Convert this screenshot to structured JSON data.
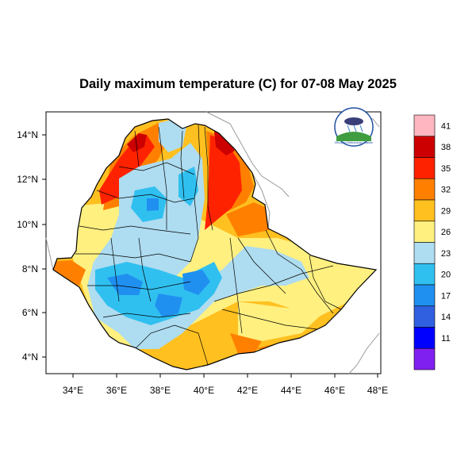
{
  "title": "Daily maximum temperature (C) for 07-08 May 2025",
  "map": {
    "lon_range": [
      33,
      48
    ],
    "lat_range": [
      3.2,
      15
    ],
    "x_ticks": [
      "34°E",
      "36°E",
      "38°E",
      "40°E",
      "42°E",
      "44°E",
      "46°E",
      "48°E"
    ],
    "y_ticks": [
      "14°N",
      "12°N",
      "10°N",
      "8°N",
      "6°N",
      "4°N"
    ],
    "colors": {
      "land_outside": "#ffffff",
      "boundary": "#000000",
      "neighbor_border": "#9a9a9a"
    }
  },
  "colorbar": {
    "labels": [
      "41",
      "38",
      "35",
      "32",
      "29",
      "26",
      "23",
      "20",
      "17",
      "14",
      "11"
    ],
    "colors": [
      "#ffb6c1",
      "#cc0000",
      "#ff2200",
      "#ff8000",
      "#ffc020",
      "#fff080",
      "#aedcf0",
      "#30c0f0",
      "#2090f0",
      "#3060e0",
      "#0000ff",
      "#8020f0"
    ]
  },
  "logo": {
    "name": "ethiopian-meteorology-institute-logo",
    "text": "Ethiopian Meteorology Institute"
  }
}
